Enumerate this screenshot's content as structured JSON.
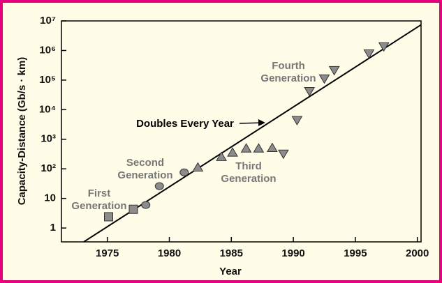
{
  "chart_data": {
    "type": "scatter",
    "xlabel": "Year",
    "ylabel": "Capacity-Distance (Gb/s · km)",
    "xlim": [
      1971.3,
      2000.3
    ],
    "ylim": [
      0.34,
      10000000
    ],
    "ylog": true,
    "xticks": [
      1975,
      1980,
      1985,
      1990,
      1995,
      2000
    ],
    "yticks": [
      1,
      10,
      {
        "value": 100,
        "label": "10²"
      },
      {
        "value": 1000,
        "label": "10³"
      },
      {
        "value": 10000,
        "label": "10⁴"
      },
      {
        "value": 100000,
        "label": "10⁵"
      },
      {
        "value": 1000000,
        "label": "10⁶"
      },
      {
        "value": 10000000,
        "label": "10⁷"
      }
    ],
    "series": [
      {
        "name": "First Generation",
        "marker": "square",
        "color": "#8c8c8c",
        "x": [
          1975.1,
          1977.1
        ],
        "values": [
          2.4,
          4.3
        ]
      },
      {
        "name": "Second Generation",
        "marker": "circle",
        "color": "#8c8c8c",
        "x": [
          1978.1,
          1979.2,
          1981.2
        ],
        "values": [
          6,
          26,
          76
        ]
      },
      {
        "name": "Third Generation",
        "marker": "triangle-up",
        "color": "#8c8c8c",
        "x": [
          1982.3,
          1984.2,
          1985.1,
          1986.2,
          1987.2,
          1988.3
        ],
        "values": [
          110,
          250,
          350,
          480,
          480,
          500
        ]
      },
      {
        "name": "Fourth Generation",
        "marker": "triangle-down",
        "color": "#8c8c8c",
        "x": [
          1989.2,
          1990.3,
          1991.3,
          1992.5,
          1993.3,
          1996.1,
          1997.3
        ],
        "values": [
          330,
          4500,
          43000,
          115000,
          220000,
          800000,
          1400000
        ]
      }
    ],
    "trend": {
      "name": "Doubles Every Year",
      "color": "#000000",
      "x": [
        1973.1,
        2000.3
      ],
      "values": [
        0.34,
        7400000
      ]
    }
  }
}
